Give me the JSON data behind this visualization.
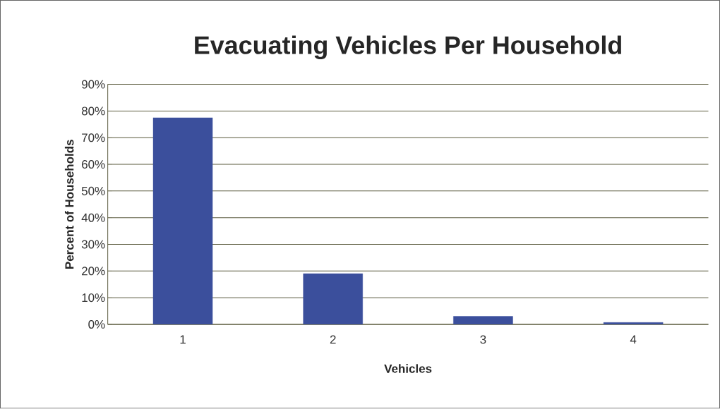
{
  "chart_data": {
    "type": "bar",
    "title": "Evacuating Vehicles Per Household",
    "xlabel": "Vehicles",
    "ylabel": "Percent of Households",
    "categories": [
      "1",
      "2",
      "3",
      "4"
    ],
    "values": [
      77.5,
      19,
      3,
      0.7
    ],
    "color": "#3b4f9c",
    "ylim": [
      0,
      90
    ],
    "yticks": [
      {
        "value": 0,
        "label": "0%"
      },
      {
        "value": 10,
        "label": "10%"
      },
      {
        "value": 20,
        "label": "20%"
      },
      {
        "value": 30,
        "label": "30%"
      },
      {
        "value": 40,
        "label": "40%"
      },
      {
        "value": 50,
        "label": "50%"
      },
      {
        "value": 60,
        "label": "60%"
      },
      {
        "value": 70,
        "label": "70%"
      },
      {
        "value": 80,
        "label": "80%"
      },
      {
        "value": 90,
        "label": "90%"
      }
    ],
    "grid": "y"
  }
}
